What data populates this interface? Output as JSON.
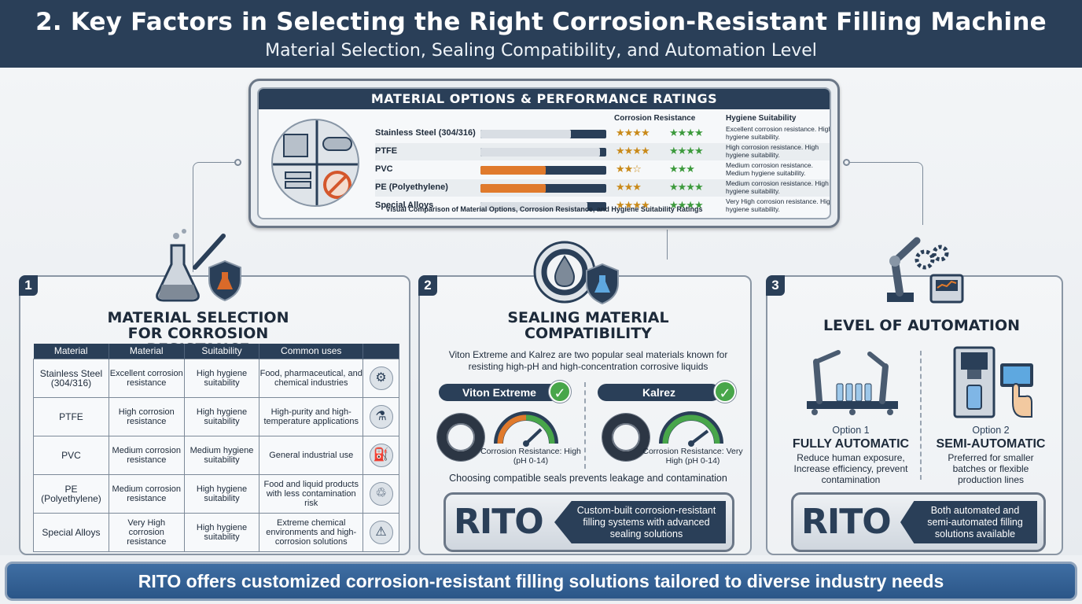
{
  "header": {
    "title": "2. Key Factors in Selecting the Right Corrosion-Resistant Filling Machine",
    "subtitle": "Material Selection, Sealing Compatibility, and Automation Level"
  },
  "material_options": {
    "heading": "MATERIAL OPTIONS & PERFORMANCE RATINGS",
    "col_corrosion": "Corrosion Resistance",
    "col_hygiene": "Hygiene Suitability",
    "caption": "Visual Comparison of Material Options, Corrosion Resistance, and Hygiene Suitability Ratings",
    "rows": [
      {
        "name": "Stainless Steel (304/316)",
        "level": 0.72,
        "color": "#d9dee4",
        "corrosion_stars": "★★★★",
        "hygiene_stars": "★★★★",
        "desc": "Excellent corrosion resistance. High hygiene suitability."
      },
      {
        "name": "PTFE",
        "level": 0.95,
        "color": "#d9dee4",
        "corrosion_stars": "★★★★",
        "hygiene_stars": "★★★★",
        "desc": "High corrosion resistance. High hygiene suitability."
      },
      {
        "name": "PVC",
        "level": 0.52,
        "color": "#e07a2c",
        "corrosion_stars": "★★☆",
        "hygiene_stars": "★★★",
        "desc": "Medium corrosion resistance. Medium hygiene suitability."
      },
      {
        "name": "PE (Polyethylene)",
        "level": 0.52,
        "color": "#e07a2c",
        "corrosion_stars": "★★★",
        "hygiene_stars": "★★★★",
        "desc": "Medium corrosion resistance. High hygiene suitability."
      },
      {
        "name": "Special Alloys",
        "level": 0.85,
        "color": "#d9dee4",
        "corrosion_stars": "★★★★",
        "hygiene_stars": "★★★★",
        "desc": "Very High corrosion resistance. High hygiene suitability."
      }
    ]
  },
  "section1": {
    "number": "1",
    "title": "MATERIAL SELECTION FOR CORROSION RESISTANCE",
    "headers": [
      "Material",
      "Material",
      "Suitability",
      "Common uses"
    ],
    "rows": [
      {
        "material": "Stainless Steel (304/316)",
        "property": "Excellent corrosion resistance",
        "suitability": "High hygiene suitability",
        "uses": "Food, pharmaceutical, and chemical industries",
        "icon": "⚙"
      },
      {
        "material": "PTFE",
        "property": "High corrosion resistance",
        "suitability": "High hygiene suitability",
        "uses": "High-purity and high-temperature applications",
        "icon": "⚗"
      },
      {
        "material": "PVC",
        "property": "Medium corrosion resistance",
        "suitability": "Medium hygiene suitability",
        "uses": "General industrial use",
        "icon": "⛽"
      },
      {
        "material": "PE (Polyethylene)",
        "property": "Medium corrosion resistance",
        "suitability": "High hygiene suitability",
        "uses": "Food and liquid products with less contamination risk",
        "icon": "♲"
      },
      {
        "material": "Special Alloys",
        "property": "Very High corrosion resistance",
        "suitability": "High hygiene suitability",
        "uses": "Extreme chemical environments and high-corrosion solutions",
        "icon": "⚠"
      }
    ]
  },
  "section2": {
    "number": "2",
    "title": "SEALING MATERIAL COMPATIBILITY",
    "description": "Viton Extreme and Kalrez are two popular seal materials known for resisting high-pH and high-concentration corrosive liquids",
    "seal1": {
      "name": "Viton Extreme",
      "rating": "Corrosion Resistance: High (pH 0-14)"
    },
    "seal2": {
      "name": "Kalrez",
      "rating": "Corrosion Resistance: Very High (pH 0-14)"
    },
    "note": "Choosing compatible seals prevents leakage and contamination",
    "rito_logo": "RITO",
    "rito_msg": "Custom-built corrosion-resistant filling systems with advanced sealing solutions"
  },
  "section3": {
    "number": "3",
    "title": "LEVEL OF AUTOMATION",
    "option1": {
      "label": "Option 1",
      "title": "FULLY AUTOMATIC",
      "desc": "Reduce human exposure, Increase efficiency, prevent contamination"
    },
    "option2": {
      "label": "Option 2",
      "title": "SEMI-AUTOMATIC",
      "desc": "Preferred for smaller batches or flexible production lines"
    },
    "rito_logo": "RITO",
    "rito_msg": "Both automated and semi-automated filling solutions available"
  },
  "footer": {
    "text": "RITO offers customized corrosion-resistant filling solutions tailored to diverse industry needs"
  },
  "colors": {
    "navy": "#2a3f58",
    "orange": "#e07a2c",
    "green": "#48a64a",
    "footer_blue": "#2b5688"
  }
}
